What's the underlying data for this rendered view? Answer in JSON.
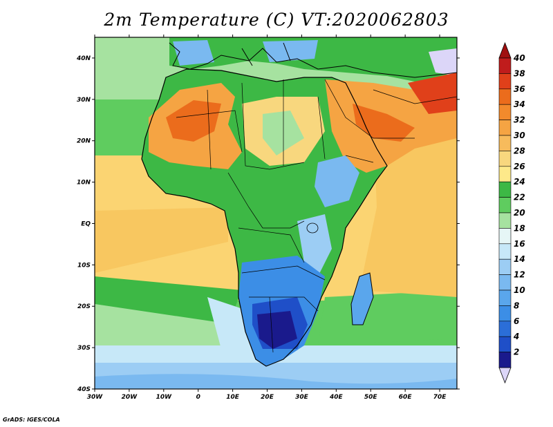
{
  "title": "2m Temperature (C) VT:2020062803",
  "credit": "GrADS: IGES/COLA",
  "map": {
    "region": "Africa",
    "variable": "2m Temperature",
    "units": "C",
    "valid_time": "2020062803",
    "lon_range": [
      -30,
      75
    ],
    "lat_range": [
      -40,
      45
    ],
    "lat_ticks": [
      {
        "value": 40,
        "label": "40N"
      },
      {
        "value": 30,
        "label": "30N"
      },
      {
        "value": 20,
        "label": "20N"
      },
      {
        "value": 10,
        "label": "10N"
      },
      {
        "value": 0,
        "label": "EQ"
      },
      {
        "value": -10,
        "label": "10S"
      },
      {
        "value": -20,
        "label": "20S"
      },
      {
        "value": -30,
        "label": "30S"
      },
      {
        "value": -40,
        "label": "40S"
      }
    ],
    "lon_ticks": [
      {
        "value": -30,
        "label": "30W"
      },
      {
        "value": -20,
        "label": "20W"
      },
      {
        "value": -10,
        "label": "10W"
      },
      {
        "value": 0,
        "label": "0"
      },
      {
        "value": 10,
        "label": "10E"
      },
      {
        "value": 20,
        "label": "20E"
      },
      {
        "value": 30,
        "label": "30E"
      },
      {
        "value": 40,
        "label": "40E"
      },
      {
        "value": 50,
        "label": "50E"
      },
      {
        "value": 60,
        "label": "60E"
      },
      {
        "value": 70,
        "label": "70E"
      }
    ]
  },
  "colorbar": {
    "levels": [
      {
        "label": "2",
        "color": "#1a1a8c"
      },
      {
        "label": "4",
        "color": "#1f4fc8"
      },
      {
        "label": "6",
        "color": "#2b6ed8"
      },
      {
        "label": "8",
        "color": "#3c8ee6"
      },
      {
        "label": "10",
        "color": "#5aa6ec"
      },
      {
        "label": "12",
        "color": "#7ab9f0"
      },
      {
        "label": "14",
        "color": "#9ccdf4"
      },
      {
        "label": "16",
        "color": "#c7e8f8"
      },
      {
        "label": "18",
        "color": "#e6f6f6"
      },
      {
        "label": "20",
        "color": "#a6e2a0"
      },
      {
        "label": "22",
        "color": "#5fcc5f"
      },
      {
        "label": "24",
        "color": "#3db845"
      },
      {
        "label": "26",
        "color": "#fde98a"
      },
      {
        "label": "28",
        "color": "#f8d77e"
      },
      {
        "label": "30",
        "color": "#f7bb5c"
      },
      {
        "label": "32",
        "color": "#f5a443"
      },
      {
        "label": "34",
        "color": "#f28a2c"
      },
      {
        "label": "36",
        "color": "#eb6c1c"
      },
      {
        "label": "38",
        "color": "#e0401a"
      },
      {
        "label": "40",
        "color": "#c01c1c"
      }
    ],
    "below_color": "#dcd6f8",
    "above_color": "#a01010"
  },
  "colors": {
    "ocean_warm": "#fbd472",
    "ocean_mid": "#5fcc5f",
    "ocean_cool": "#a6e2a0",
    "ocean_cold": "#c7e8f8",
    "land_hot": "#f28a2c",
    "land_warm": "#f8d77e",
    "land_green": "#3db845",
    "land_cool": "#7ab9f0",
    "land_cold": "#2b6ed8"
  }
}
